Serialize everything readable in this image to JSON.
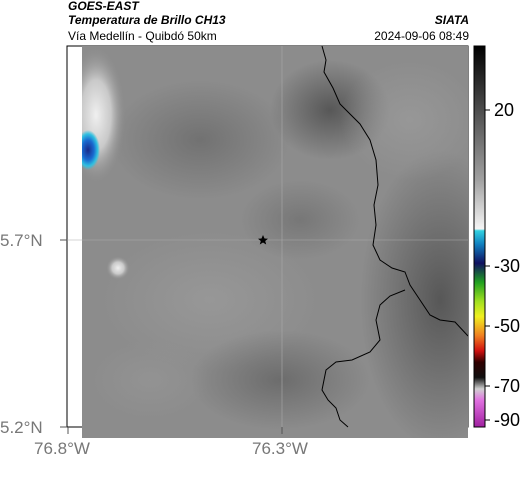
{
  "header": {
    "satellite": "GOES-EAST",
    "product": "Temperatura de Brillo CH13",
    "region": "Vía Medellín - Quibdó 50km",
    "source": "SIATA",
    "datetime": "2024-09-06 08:49"
  },
  "axes": {
    "lat_ticks": [
      "5.7°N",
      "5.2°N"
    ],
    "lon_ticks": [
      "76.8°W",
      "76.3°W"
    ]
  },
  "colorbar": {
    "tick_labels": [
      "20",
      "-30",
      "-50",
      "-70",
      "-90"
    ]
  },
  "marker": {
    "icon": "star-icon"
  }
}
